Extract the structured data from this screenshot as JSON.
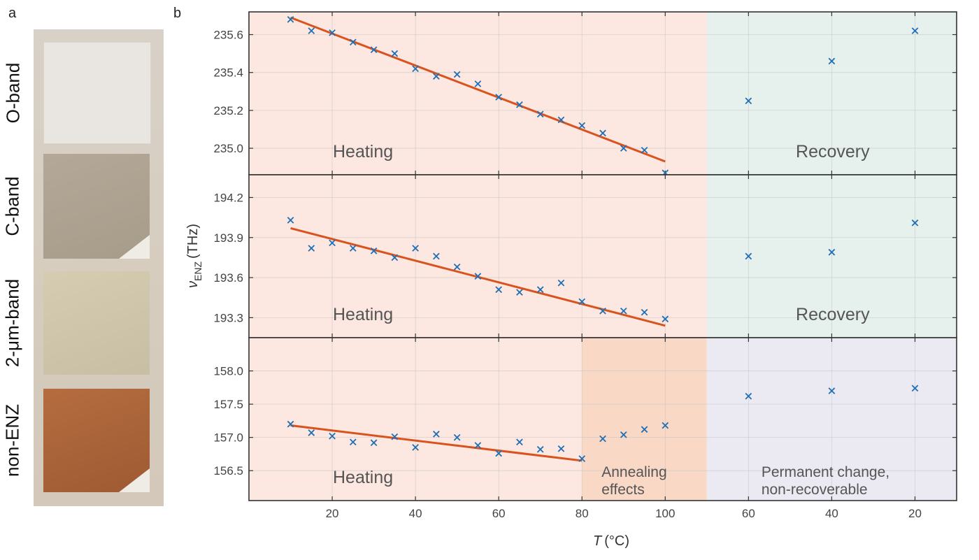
{
  "panel_a": {
    "letter": "a",
    "samples": [
      {
        "label": "O-band"
      },
      {
        "label": "C-band"
      },
      {
        "label": "2-μm-band"
      },
      {
        "label": "non-ENZ"
      }
    ]
  },
  "panel_b": {
    "letter": "b"
  },
  "colors": {
    "heating_bg": "#fce8e0",
    "recovery_bg": "#e6f1ed",
    "annealing_bg": "#f9d8c6",
    "permanent_bg": "#ebeaf2",
    "markers": "#1f6fb6",
    "fit": "#d9531e"
  },
  "chart_data": {
    "type": "scatter",
    "xlabel": "T",
    "xunit": "(°C)",
    "ylabel": "ν",
    "ylabel_sub": "ENZ",
    "yunit": "(THz)",
    "x_sections": {
      "heating_ticks": [
        20,
        40,
        60,
        80,
        100
      ],
      "recovery_ticks": [
        60,
        40,
        20
      ]
    },
    "grid": true,
    "panels": [
      {
        "name": "O-band",
        "ylim": [
          234.86,
          235.72
        ],
        "yticks": [
          235.0,
          235.2,
          235.4,
          235.6
        ],
        "regions": [
          {
            "label": "Heating",
            "range": [
              0,
              110
            ]
          },
          {
            "label": "Recovery",
            "range": [
              110,
              170
            ]
          }
        ],
        "heating": {
          "x": [
            10,
            15,
            20,
            25,
            30,
            35,
            40,
            45,
            50,
            55,
            60,
            65,
            70,
            75,
            80,
            85,
            90,
            95,
            100
          ],
          "y": [
            235.68,
            235.62,
            235.61,
            235.56,
            235.52,
            235.5,
            235.42,
            235.38,
            235.39,
            235.34,
            235.27,
            235.23,
            235.18,
            235.15,
            235.12,
            235.08,
            235.0,
            234.99,
            234.87
          ]
        },
        "fit": {
          "x": [
            10,
            100
          ],
          "y": [
            235.69,
            234.93
          ]
        },
        "recovery": {
          "x": [
            60,
            40,
            20
          ],
          "y": [
            235.25,
            235.46,
            235.62
          ]
        }
      },
      {
        "name": "C-band",
        "ylim": [
          193.15,
          194.37
        ],
        "yticks": [
          193.3,
          193.6,
          193.9,
          194.2
        ],
        "regions": [
          {
            "label": "Heating",
            "range": [
              0,
              110
            ]
          },
          {
            "label": "Recovery",
            "range": [
              110,
              170
            ]
          }
        ],
        "heating": {
          "x": [
            10,
            15,
            20,
            25,
            30,
            35,
            40,
            45,
            50,
            55,
            60,
            65,
            70,
            75,
            80,
            85,
            90,
            95,
            100
          ],
          "y": [
            194.03,
            193.82,
            193.86,
            193.82,
            193.8,
            193.75,
            193.82,
            193.76,
            193.68,
            193.61,
            193.51,
            193.49,
            193.51,
            193.56,
            193.42,
            193.35,
            193.35,
            193.34,
            193.29
          ]
        },
        "fit": {
          "x": [
            10,
            100
          ],
          "y": [
            193.97,
            193.24
          ]
        },
        "recovery": {
          "x": [
            60,
            40,
            20
          ],
          "y": [
            193.76,
            193.79,
            194.01
          ]
        }
      },
      {
        "name": "2-μm-band",
        "ylim": [
          156.05,
          158.5
        ],
        "yticks": [
          156.5,
          157.0,
          157.5,
          158.0
        ],
        "regions": [
          {
            "label": "Heating",
            "range": [
              0,
              80
            ]
          },
          {
            "label": "Annealing\neffects",
            "range": [
              80,
              110
            ]
          },
          {
            "label": "Permanent change,\nnon-recoverable",
            "range": [
              110,
              170
            ]
          }
        ],
        "heating": {
          "x": [
            10,
            15,
            20,
            25,
            30,
            35,
            40,
            45,
            50,
            55,
            60,
            65,
            70,
            75,
            80,
            85,
            90,
            95,
            100
          ],
          "y": [
            157.2,
            157.07,
            157.02,
            156.93,
            156.92,
            157.01,
            156.85,
            157.05,
            157.0,
            156.88,
            156.76,
            156.93,
            156.82,
            156.83,
            156.68,
            156.98,
            157.04,
            157.12,
            157.18
          ]
        },
        "fit": {
          "x": [
            10,
            80
          ],
          "y": [
            157.18,
            156.65
          ]
        },
        "recovery": {
          "x": [
            60,
            40,
            20
          ],
          "y": [
            157.62,
            157.7,
            157.74
          ]
        }
      }
    ]
  }
}
